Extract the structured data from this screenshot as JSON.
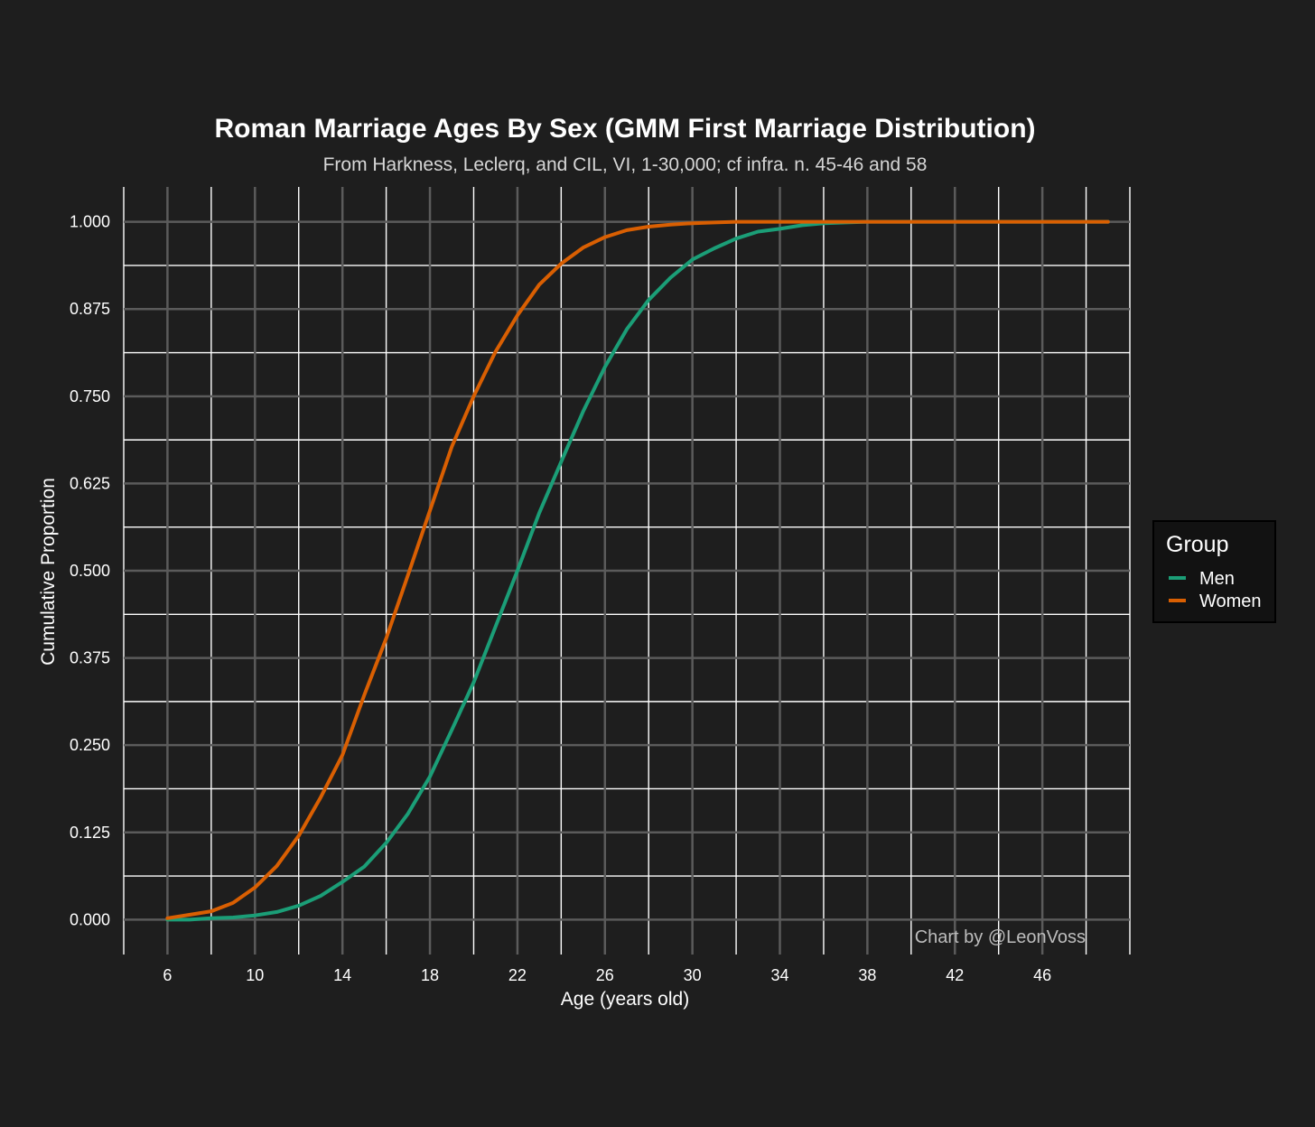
{
  "chart_data": {
    "type": "line",
    "title": "Roman Marriage Ages By Sex (GMM First Marriage Distribution)",
    "subtitle": "From Harkness, Leclerq, and CIL, VI, 1-30,000; cf infra. n. 45-46 and 58",
    "xlabel": "Age (years old)",
    "ylabel": "Cumulative Proportion",
    "caption": "Chart by @LeonVoss",
    "xlim": [
      4,
      50
    ],
    "ylim": [
      -0.05,
      1.05
    ],
    "x_ticks": [
      6,
      10,
      14,
      18,
      22,
      26,
      30,
      34,
      38,
      42,
      46
    ],
    "y_ticks": [
      0.0,
      0.125,
      0.25,
      0.375,
      0.5,
      0.625,
      0.75,
      0.875,
      1.0
    ],
    "x_tick_labels": [
      "6",
      "10",
      "14",
      "18",
      "22",
      "26",
      "30",
      "34",
      "38",
      "42",
      "46"
    ],
    "y_tick_labels": [
      "0.000",
      "0.125",
      "0.250",
      "0.375",
      "0.500",
      "0.625",
      "0.750",
      "0.875",
      "1.000"
    ],
    "grid": true,
    "legend": {
      "title": "Group",
      "position": "right"
    },
    "series": [
      {
        "name": "Men",
        "color": "#1b9e77",
        "x": [
          6,
          7,
          8,
          9,
          10,
          11,
          12,
          13,
          14,
          15,
          16,
          17,
          18,
          19,
          20,
          21,
          22,
          23,
          24,
          25,
          26,
          27,
          28,
          29,
          30,
          31,
          32,
          33,
          34,
          35,
          36,
          37,
          38,
          39,
          40,
          41,
          42,
          43,
          44,
          45,
          46,
          47,
          48,
          49
        ],
        "y": [
          0.0,
          0.0,
          0.002,
          0.003,
          0.006,
          0.011,
          0.02,
          0.034,
          0.054,
          0.076,
          0.11,
          0.152,
          0.205,
          0.272,
          0.34,
          0.42,
          0.5,
          0.583,
          0.656,
          0.728,
          0.792,
          0.846,
          0.888,
          0.92,
          0.946,
          0.962,
          0.976,
          0.986,
          0.99,
          0.995,
          0.998,
          0.999,
          1.0,
          1.0,
          1.0,
          1.0,
          1.0,
          1.0,
          1.0,
          1.0,
          1.0,
          1.0,
          1.0,
          1.0
        ]
      },
      {
        "name": "Women",
        "color": "#d95f02",
        "x": [
          6,
          7,
          8,
          9,
          10,
          11,
          12,
          13,
          14,
          15,
          16,
          17,
          18,
          19,
          20,
          21,
          22,
          23,
          24,
          25,
          26,
          27,
          28,
          29,
          30,
          31,
          32,
          33,
          34,
          35,
          36,
          37,
          38,
          39,
          40,
          41,
          42,
          43,
          44,
          45,
          46,
          47,
          48,
          49
        ],
        "y": [
          0.002,
          0.007,
          0.012,
          0.024,
          0.046,
          0.077,
          0.12,
          0.175,
          0.236,
          0.322,
          0.403,
          0.494,
          0.586,
          0.678,
          0.75,
          0.814,
          0.866,
          0.91,
          0.94,
          0.963,
          0.978,
          0.988,
          0.993,
          0.996,
          0.998,
          0.999,
          1.0,
          1.0,
          1.0,
          1.0,
          1.0,
          1.0,
          1.0,
          1.0,
          1.0,
          1.0,
          1.0,
          1.0,
          1.0,
          1.0,
          1.0,
          1.0,
          1.0,
          1.0
        ]
      }
    ]
  }
}
